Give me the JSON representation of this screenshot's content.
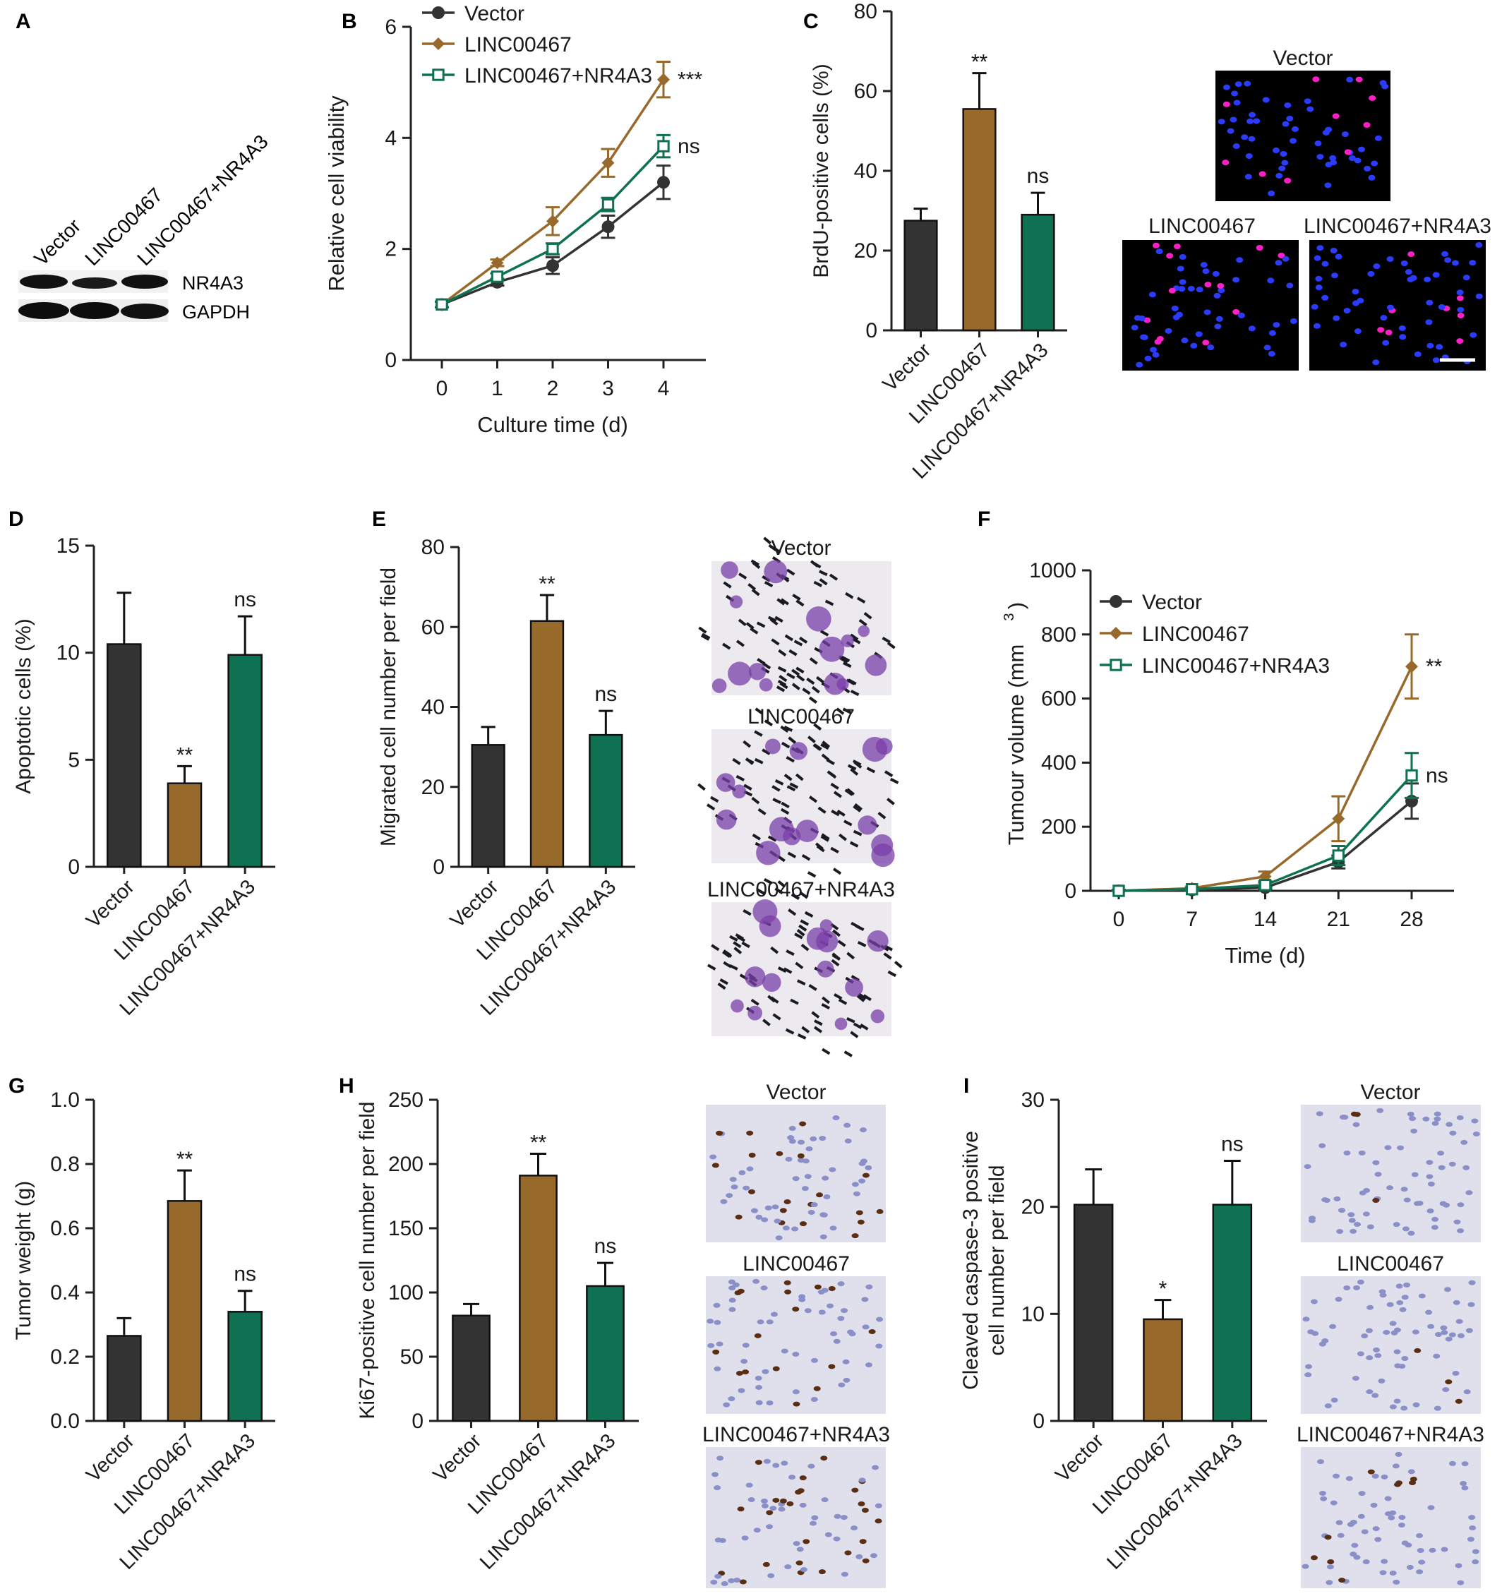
{
  "colors": {
    "vector": "#333333",
    "linc": "#97692A",
    "nr4a3": "#0E7252"
  },
  "panels": {
    "A": "A",
    "B": "B",
    "C": "C",
    "D": "D",
    "E": "E",
    "F": "F",
    "G": "G",
    "H": "H",
    "I": "I"
  },
  "western_blot": {
    "lanes": [
      "Vector",
      "LINC00467",
      "LINC00467+NR4A3"
    ],
    "bands": [
      "NR4A3",
      "GAPDH"
    ]
  },
  "chart_data": [
    {
      "id": "B",
      "type": "line",
      "xlabel": "Culture time (d)",
      "ylabel": "Relative cell viability",
      "x": [
        0,
        1,
        2,
        3,
        4
      ],
      "xticks": [
        "0",
        "1",
        "2",
        "3",
        "4"
      ],
      "ylim": [
        0,
        6
      ],
      "yticks": [
        0,
        2,
        4,
        6
      ],
      "legend": "top-left",
      "series": [
        {
          "name": "Vector",
          "values": [
            1.0,
            1.4,
            1.7,
            2.4,
            3.2
          ],
          "err": [
            0.05,
            0.06,
            0.15,
            0.2,
            0.3
          ],
          "color": "#333333",
          "marker": "circle",
          "sig": ""
        },
        {
          "name": "LINC00467",
          "values": [
            1.0,
            1.75,
            2.5,
            3.55,
            5.05
          ],
          "err": [
            0.05,
            0.06,
            0.25,
            0.25,
            0.32
          ],
          "color": "#97692A",
          "marker": "diamond",
          "sig": "***"
        },
        {
          "name": "LINC00467+NR4A3",
          "values": [
            1.0,
            1.5,
            2.0,
            2.8,
            3.85
          ],
          "err": [
            0.05,
            0.06,
            0.1,
            0.12,
            0.2
          ],
          "color": "#0E7252",
          "marker": "square",
          "sig": "ns"
        }
      ]
    },
    {
      "id": "C",
      "type": "bar",
      "ylabel": "BrdU-positive cells (%)",
      "categories": [
        "Vector",
        "LINC00467",
        "LINC00467+NR4A3"
      ],
      "values": [
        27.5,
        55.5,
        29.0
      ],
      "err": [
        3.0,
        9.0,
        5.5
      ],
      "sig": [
        "",
        "**",
        "ns"
      ],
      "ylim": [
        0,
        80
      ],
      "yticks": [
        0,
        20,
        40,
        60,
        80
      ]
    },
    {
      "id": "D",
      "type": "bar",
      "ylabel": "Apoptotic cells (%)",
      "categories": [
        "Vector",
        "LINC00467",
        "LINC00467+NR4A3"
      ],
      "values": [
        10.4,
        3.9,
        9.9
      ],
      "err": [
        2.4,
        0.8,
        1.8
      ],
      "sig": [
        "",
        "**",
        "ns"
      ],
      "ylim": [
        0,
        15
      ],
      "yticks": [
        0,
        5,
        10,
        15
      ]
    },
    {
      "id": "E",
      "type": "bar",
      "ylabel": "Migrated cell number per field",
      "categories": [
        "Vector",
        "LINC00467",
        "LINC00467+NR4A3"
      ],
      "values": [
        30.5,
        61.5,
        33.0
      ],
      "err": [
        4.5,
        6.5,
        6.0
      ],
      "sig": [
        "",
        "**",
        "ns"
      ],
      "ylim": [
        0,
        80
      ],
      "yticks": [
        0,
        20,
        40,
        60,
        80
      ]
    },
    {
      "id": "F",
      "type": "line",
      "xlabel": "Time (d)",
      "ylabel": "Tumour volume (mm",
      "ylabel_sup": "3",
      "ylabel_end": ")",
      "x": [
        0,
        7,
        14,
        21,
        28
      ],
      "xticks": [
        "0",
        "7",
        "14",
        "21",
        "28"
      ],
      "ylim": [
        0,
        1000
      ],
      "yticks": [
        0,
        200,
        400,
        600,
        800,
        1000
      ],
      "legend": "top-left",
      "series": [
        {
          "name": "Vector",
          "values": [
            0,
            3,
            10,
            90,
            280
          ],
          "err": [
            3,
            3,
            6,
            20,
            55
          ],
          "color": "#333333",
          "marker": "circle",
          "sig": ""
        },
        {
          "name": "LINC00467",
          "values": [
            0,
            8,
            45,
            225,
            700
          ],
          "err": [
            3,
            5,
            15,
            70,
            100
          ],
          "color": "#97692A",
          "marker": "diamond",
          "sig": "**"
        },
        {
          "name": "LINC00467+NR4A3",
          "values": [
            0,
            5,
            18,
            110,
            360
          ],
          "err": [
            3,
            3,
            8,
            30,
            70
          ],
          "color": "#0E7252",
          "marker": "square",
          "sig": "ns"
        }
      ]
    },
    {
      "id": "G",
      "type": "bar",
      "ylabel": "Tumor weight (g)",
      "categories": [
        "Vector",
        "LINC00467",
        "LINC00467+NR4A3"
      ],
      "values": [
        0.265,
        0.685,
        0.34
      ],
      "err": [
        0.055,
        0.095,
        0.065
      ],
      "sig": [
        "",
        "**",
        "ns"
      ],
      "ylim": [
        0,
        1.0
      ],
      "yticks": [
        0.0,
        0.2,
        0.4,
        0.6,
        0.8,
        1.0
      ],
      "ytick_labels": [
        "0.0",
        "0.2",
        "0.4",
        "0.6",
        "0.8",
        "1.0"
      ]
    },
    {
      "id": "H",
      "type": "bar",
      "ylabel": "Ki67-positive cell number per field",
      "categories": [
        "Vector",
        "LINC00467",
        "LINC00467+NR4A3"
      ],
      "values": [
        82,
        191,
        105
      ],
      "err": [
        9,
        17,
        18
      ],
      "sig": [
        "",
        "**",
        "ns"
      ],
      "ylim": [
        0,
        250
      ],
      "yticks": [
        0,
        50,
        100,
        150,
        200,
        250
      ]
    },
    {
      "id": "I",
      "type": "bar",
      "ylabel": "Cleaved caspase-3 positive",
      "ylabel2": "cell number per field",
      "categories": [
        "Vector",
        "LINC00467",
        "LINC00467+NR4A3"
      ],
      "values": [
        20.2,
        9.5,
        20.2
      ],
      "err": [
        3.3,
        1.8,
        4.1
      ],
      "sig": [
        "",
        "*",
        "ns"
      ],
      "ylim": [
        0,
        30
      ],
      "yticks": [
        0,
        10,
        20,
        30
      ]
    }
  ],
  "micrographs": {
    "C": [
      "Vector",
      "LINC00467",
      "LINC00467+NR4A3"
    ],
    "E": [
      "Vector",
      "LINC00467",
      "LINC00467+NR4A3"
    ],
    "H": [
      "Vector",
      "LINC00467",
      "LINC00467+NR4A3"
    ],
    "I": [
      "Vector",
      "LINC00467",
      "LINC00467+NR4A3"
    ]
  }
}
